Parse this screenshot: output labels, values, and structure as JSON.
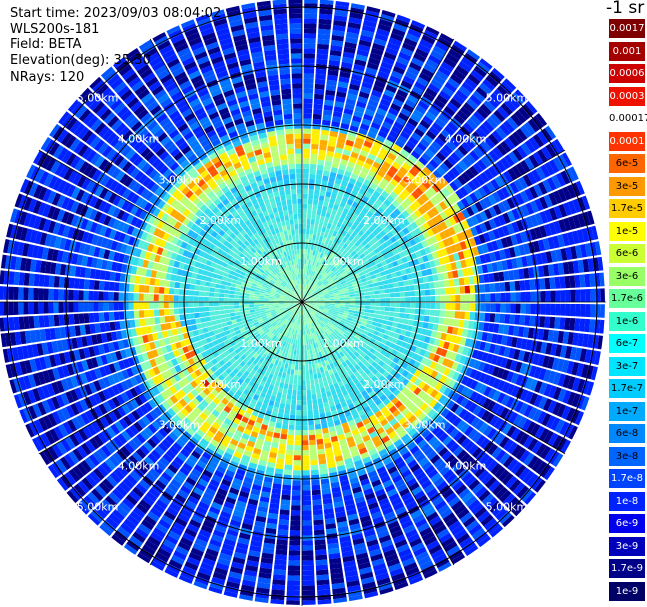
{
  "info": {
    "start_time": "Start time: 2023/09/03 08:04:02",
    "system_id": "WLS200s-181",
    "field": "Field: BETA",
    "elevation": "Elevation(deg): 35.30",
    "nrays": "NRays: 120"
  },
  "colorbar": {
    "unit_label": "-1 sr",
    "entries": [
      {
        "label": "0.0017",
        "color": "#7f0000",
        "text_color": "#ffffff"
      },
      {
        "label": "0.001",
        "color": "#a50000",
        "text_color": "#ffffff"
      },
      {
        "label": "0.0006",
        "color": "#cc0000",
        "text_color": "#ffffff"
      },
      {
        "label": "0.0003",
        "color": "#ee1100",
        "text_color": "#ffffff"
      },
      {
        "label": "0.00017",
        "color": "#ffffff",
        "text_color": "#000000"
      },
      {
        "label": "0.0001",
        "color": "#ff3300",
        "text_color": "#ffffff"
      },
      {
        "label": "6e-5",
        "color": "#ff6600",
        "text_color": "#000000"
      },
      {
        "label": "3e-5",
        "color": "#ff9900",
        "text_color": "#000000"
      },
      {
        "label": "1.7e-5",
        "color": "#ffcc00",
        "text_color": "#000000"
      },
      {
        "label": "1e-5",
        "color": "#ffff00",
        "text_color": "#000000"
      },
      {
        "label": "6e-6",
        "color": "#ccff33",
        "text_color": "#000000"
      },
      {
        "label": "3e-6",
        "color": "#99ff66",
        "text_color": "#000000"
      },
      {
        "label": "1.7e-6",
        "color": "#66ff99",
        "text_color": "#000000"
      },
      {
        "label": "1e-6",
        "color": "#33ffcc",
        "text_color": "#000000"
      },
      {
        "label": "6e-7",
        "color": "#00ffff",
        "text_color": "#000000"
      },
      {
        "label": "3e-7",
        "color": "#00e5ff",
        "text_color": "#000000"
      },
      {
        "label": "1.7e-7",
        "color": "#00ccff",
        "text_color": "#000000"
      },
      {
        "label": "1e-7",
        "color": "#00aaff",
        "text_color": "#000000"
      },
      {
        "label": "6e-8",
        "color": "#0088ff",
        "text_color": "#000000"
      },
      {
        "label": "3e-8",
        "color": "#0066ff",
        "text_color": "#000000"
      },
      {
        "label": "1.7e-8",
        "color": "#0044ff",
        "text_color": "#ffffff"
      },
      {
        "label": "1e-8",
        "color": "#0022ff",
        "text_color": "#ffffff"
      },
      {
        "label": "6e-9",
        "color": "#0000ee",
        "text_color": "#ffffff"
      },
      {
        "label": "3e-9",
        "color": "#0000bb",
        "text_color": "#ffffff"
      },
      {
        "label": "1.7e-9",
        "color": "#000088",
        "text_color": "#ffffff"
      },
      {
        "label": "1e-9",
        "color": "#000066",
        "text_color": "#ffffff"
      }
    ]
  },
  "chart_data": {
    "type": "heatmap",
    "projection": "polar-ppi",
    "field": "BETA",
    "nrays": 120,
    "range_rings_km": [
      1.0,
      2.0,
      3.0,
      4.0,
      5.0
    ],
    "ring_labels": [
      "1.00km",
      "2.00km",
      "3.00km",
      "4.00km",
      "5.00km"
    ],
    "spoke_step_deg": 30,
    "max_range_km": 5.0,
    "profile": [
      {
        "range_km": 0.3,
        "log10_beta": -6.0
      },
      {
        "range_km": 0.8,
        "log10_beta": -6.2
      },
      {
        "range_km": 1.5,
        "log10_beta": -6.4
      },
      {
        "range_km": 2.2,
        "log10_beta": -6.6
      },
      {
        "range_km": 2.7,
        "log10_beta": -4.4
      },
      {
        "range_km": 3.1,
        "log10_beta": -7.6
      },
      {
        "range_km": 4.0,
        "log10_beta": -7.8
      },
      {
        "range_km": 5.0,
        "log10_beta": -8.0
      }
    ]
  }
}
